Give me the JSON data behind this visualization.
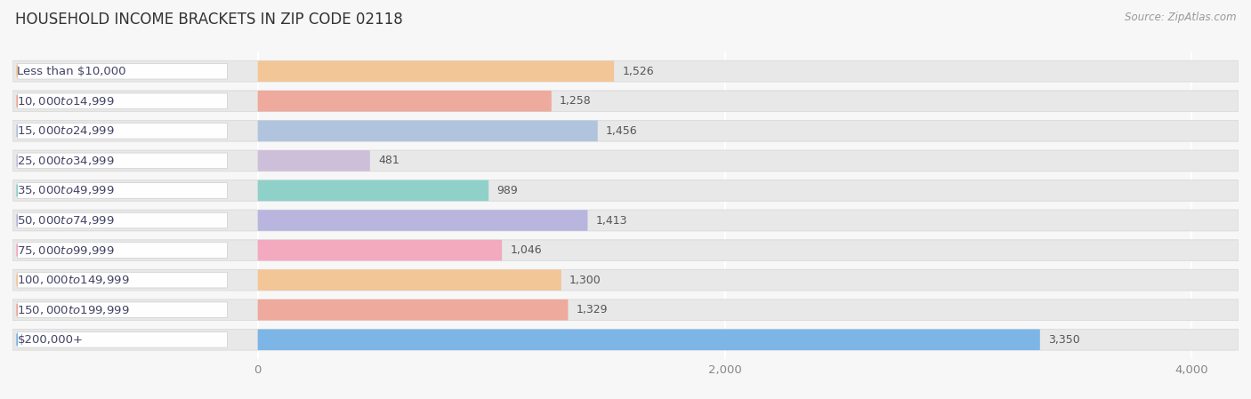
{
  "title": "HOUSEHOLD INCOME BRACKETS IN ZIP CODE 02118",
  "source": "Source: ZipAtlas.com",
  "categories": [
    "Less than $10,000",
    "$10,000 to $14,999",
    "$15,000 to $24,999",
    "$25,000 to $34,999",
    "$35,000 to $49,999",
    "$50,000 to $74,999",
    "$75,000 to $99,999",
    "$100,000 to $149,999",
    "$150,000 to $199,999",
    "$200,000+"
  ],
  "values": [
    1526,
    1258,
    1456,
    481,
    989,
    1413,
    1046,
    1300,
    1329,
    3350
  ],
  "bar_colors": [
    "#f5c08a",
    "#f0a090",
    "#a8bedd",
    "#c9b8d8",
    "#80cec4",
    "#b0aedd",
    "#f5a0b8",
    "#f5c08a",
    "#f0a090",
    "#6aaee6"
  ],
  "xlim_min": 0,
  "xlim_max": 4200,
  "xticks": [
    0,
    2000,
    4000
  ],
  "background_color": "#f7f7f7",
  "bar_bg_color": "#e8e8e8",
  "title_fontsize": 12,
  "label_fontsize": 9.5,
  "value_fontsize": 9,
  "bar_height": 0.7,
  "label_color": "#444466",
  "value_color": "#555555",
  "tick_color": "#888888",
  "grid_color": "#ffffff",
  "source_fontsize": 8.5,
  "source_color": "#999999"
}
